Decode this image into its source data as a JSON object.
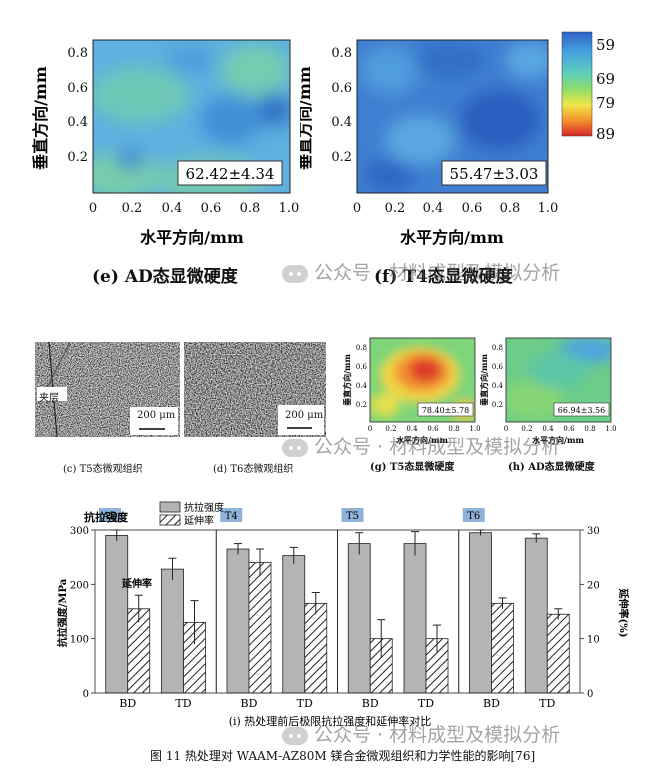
{
  "top_panels": {
    "left": {
      "ylabel": "垂直方向/mm",
      "xlabel": "水平方向/mm",
      "value_box": "62.42±4.34",
      "caption": "(e) AD态显微硬度",
      "y_ticks": [
        "0.2",
        "0.4",
        "0.6",
        "0.8"
      ],
      "x_ticks": [
        "0",
        "0.2",
        "0.4",
        "0.6",
        "0.8",
        "1.0"
      ]
    },
    "right": {
      "ylabel": "垂直方向/mm",
      "xlabel": "水平方向/mm",
      "value_box": "55.47±3.03",
      "caption": "(f) T4态显微硬度",
      "y_ticks": [
        "0.2",
        "0.4",
        "0.6",
        "0.8"
      ],
      "x_ticks": [
        "0",
        "0.2",
        "0.4",
        "0.6",
        "0.8",
        "1.0"
      ]
    },
    "colorbar_ticks": [
      "59",
      "69",
      "79",
      "89"
    ]
  },
  "micro": {
    "c_caption": "(c) T5态微观组织",
    "d_caption": "(d) T6态微观组织",
    "interlayer_label": "夹层",
    "scale_c": "200 μm",
    "scale_d": "200 μm"
  },
  "small_maps": {
    "g": {
      "value_box": "78.40±5.78",
      "caption": "(g) T5态显微硬度",
      "ylabel": "垂直方向/mm",
      "xlabel": "水平方向/mm",
      "y_ticks": [
        "0.2",
        "0.4",
        "0.6",
        "0.8"
      ],
      "x_ticks": [
        "0",
        "0.2",
        "0.4",
        "0.6",
        "0.8",
        "1.0"
      ]
    },
    "h": {
      "value_box": "66.94±3.56",
      "caption": "(h) AD态显微硬度",
      "ylabel": "垂直方向/mm",
      "xlabel": "水平方向/mm",
      "y_ticks": [
        "0.2",
        "0.4",
        "0.6",
        "0.8"
      ],
      "x_ticks": [
        "0",
        "0.2",
        "0.4",
        "0.6",
        "0.8",
        "1.0"
      ]
    }
  },
  "chart_data": {
    "type": "bar",
    "title": "(i) 热处理前后极限抗拉强度和延伸率对比",
    "categories": [
      "BD",
      "TD",
      "BD",
      "TD",
      "BD",
      "TD",
      "BD",
      "TD"
    ],
    "groups": [
      "AD",
      "T4",
      "T5",
      "T6"
    ],
    "ylabel": "抗拉强度/MPa",
    "y2label": "延伸率(%)",
    "ylim": [
      0,
      300
    ],
    "y2lim": [
      0,
      30
    ],
    "y_ticks": [
      "0",
      "100",
      "200",
      "300"
    ],
    "y2_ticks": [
      "0",
      "10",
      "20",
      "30"
    ],
    "annotations": [
      "抗拉强度",
      "延伸率"
    ],
    "legend": [
      "抗拉强度",
      "延伸率"
    ],
    "legend_position": "top-left",
    "series": [
      {
        "name": "抗拉强度",
        "values": [
          290,
          228,
          265,
          253,
          275,
          275,
          295,
          285
        ],
        "errors": [
          10,
          20,
          10,
          15,
          20,
          22,
          5,
          8
        ]
      },
      {
        "name": "延伸率",
        "values": [
          15.5,
          13,
          24,
          16.5,
          10,
          10,
          16.5,
          14.5
        ],
        "errors": [
          2.5,
          4,
          2.5,
          2,
          3.5,
          2.5,
          1,
          1
        ]
      }
    ]
  },
  "figure_caption": "图 11   热处理对 WAAM-AZ80M 镁合金微观组织和力学性能的影响[76]",
  "watermark": "公众号 · 材料成型及模拟分析",
  "colors": {
    "bar_fill": "#b4b4b4",
    "group_tag": "#8fb3d8",
    "panel_border": "#333333"
  }
}
